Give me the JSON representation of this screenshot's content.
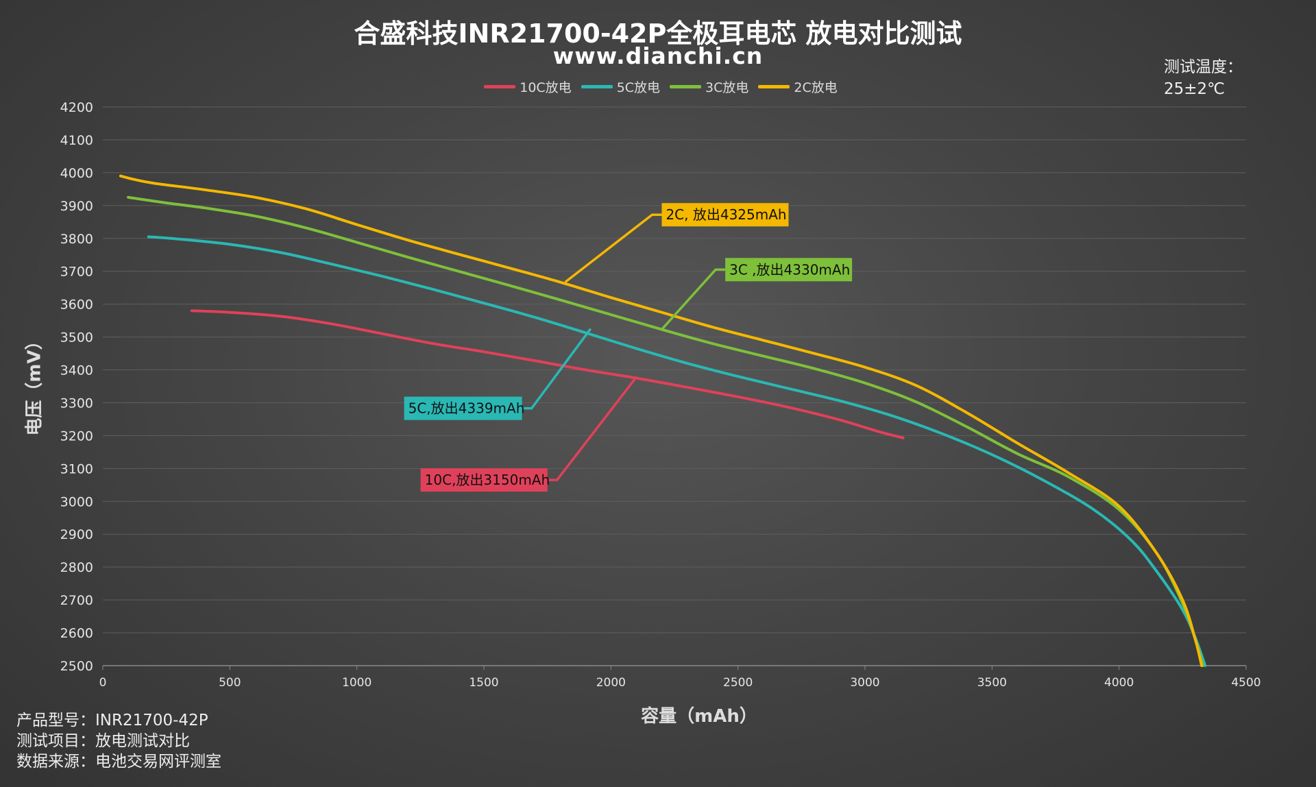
{
  "chart_data": {
    "type": "line",
    "title": "合盛科技INR21700-42P全极耳电芯 放电对比测试",
    "subtitle": "www.dianchi.cn",
    "xlabel": "容量（mAh）",
    "ylabel": "电压（mV）",
    "xlim": [
      0,
      4500
    ],
    "ylim": [
      2500,
      4200
    ],
    "xticks": [
      0,
      500,
      1000,
      1500,
      2000,
      2500,
      3000,
      3500,
      4000,
      4500
    ],
    "yticks": [
      2500,
      2600,
      2700,
      2800,
      2900,
      3000,
      3100,
      3200,
      3300,
      3400,
      3500,
      3600,
      3700,
      3800,
      3900,
      4000,
      4100,
      4200
    ],
    "grid": "horizontal",
    "legend_position": "top",
    "temperature_note": [
      "测试温度：",
      "25±2℃"
    ],
    "series": [
      {
        "name": "10C放电",
        "color": "#e0415a",
        "x": [
          350,
          500,
          700,
          900,
          1100,
          1300,
          1500,
          1700,
          1900,
          2100,
          2300,
          2500,
          2700,
          2900,
          3050,
          3150
        ],
        "y": [
          3580,
          3575,
          3563,
          3540,
          3510,
          3480,
          3455,
          3428,
          3400,
          3375,
          3347,
          3318,
          3286,
          3248,
          3213,
          3193
        ]
      },
      {
        "name": "5C放电",
        "color": "#2ab8b4",
        "x": [
          180,
          300,
          500,
          700,
          900,
          1100,
          1300,
          1500,
          1700,
          1900,
          2100,
          2300,
          2500,
          2700,
          2900,
          3100,
          3300,
          3500,
          3700,
          3900,
          4050,
          4150,
          4250,
          4300,
          4339
        ],
        "y": [
          3805,
          3798,
          3782,
          3757,
          3722,
          3685,
          3645,
          3603,
          3560,
          3513,
          3465,
          3420,
          3380,
          3343,
          3306,
          3262,
          3207,
          3142,
          3065,
          2975,
          2880,
          2785,
          2670,
          2585,
          2500
        ]
      },
      {
        "name": "3C放电",
        "color": "#7ec03a",
        "x": [
          100,
          250,
          400,
          600,
          800,
          1000,
          1200,
          1400,
          1600,
          1800,
          2000,
          2200,
          2400,
          2600,
          2800,
          3000,
          3200,
          3400,
          3600,
          3800,
          4000,
          4150,
          4250,
          4300,
          4330
        ],
        "y": [
          3925,
          3908,
          3893,
          3868,
          3832,
          3788,
          3743,
          3700,
          3657,
          3613,
          3568,
          3523,
          3480,
          3442,
          3404,
          3360,
          3303,
          3227,
          3145,
          3075,
          2975,
          2840,
          2690,
          2580,
          2500
        ]
      },
      {
        "name": "2C放电",
        "color": "#f4b800",
        "x": [
          70,
          120,
          200,
          400,
          600,
          800,
          1000,
          1200,
          1400,
          1600,
          1800,
          2000,
          2200,
          2400,
          2600,
          2800,
          3000,
          3200,
          3400,
          3600,
          3800,
          4000,
          4150,
          4250,
          4300,
          4325
        ],
        "y": [
          3990,
          3980,
          3968,
          3948,
          3925,
          3890,
          3842,
          3795,
          3752,
          3710,
          3667,
          3620,
          3575,
          3530,
          3490,
          3450,
          3408,
          3353,
          3270,
          3177,
          3087,
          2985,
          2840,
          2700,
          2580,
          2500
        ]
      }
    ],
    "annotations": [
      {
        "text": "2C, 放出4325mAh",
        "series": "2C放电",
        "point_x": 1820,
        "point_y": 3667,
        "label_x": 2200,
        "label_y": 3872,
        "color": "#f4b800"
      },
      {
        "text": "3C ,放出4330mAh",
        "series": "3C放电",
        "point_x": 2200,
        "point_y": 3523,
        "label_x": 2450,
        "label_y": 3705,
        "color": "#7ec03a"
      },
      {
        "text": "5C,放出4339mAh",
        "series": "5C放电",
        "point_x": 1920,
        "point_y": 3525,
        "label_x": 1650,
        "label_y": 3283,
        "color": "#2ab8b4"
      },
      {
        "text": "10C,放出3150mAh",
        "series": "10C放电",
        "point_x": 2100,
        "point_y": 3378,
        "label_x": 1750,
        "label_y": 3065,
        "color": "#e0415a"
      }
    ]
  },
  "info": {
    "model": "产品型号：INR21700-42P",
    "project": "测试项目：放电测试对比",
    "source": "数据来源：电池交易网评测室"
  }
}
